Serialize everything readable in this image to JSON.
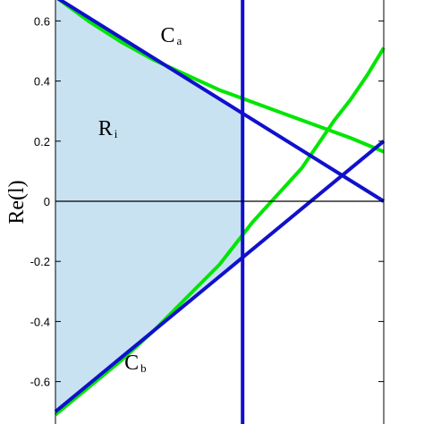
{
  "chart_data": {
    "type": "line",
    "title": "",
    "ylabel": "Re(l)",
    "xlabel": "",
    "ylim": [
      -0.7,
      0.66
    ],
    "xlim": [
      0,
      1
    ],
    "yticks": [
      0.6,
      0.4,
      0.2,
      0,
      -0.2,
      -0.4,
      -0.6
    ],
    "ytick_labels": [
      "0.6",
      "0.4",
      "0.2",
      "0",
      "-0.2",
      "-0.4",
      "-0.6"
    ],
    "grid": false,
    "colors": {
      "green": "#00e600",
      "blue": "#1010cc",
      "region_fill": "#c9e2f2",
      "axis": "#000000"
    },
    "series": [
      {
        "curve": "upper-green",
        "color": "#00e600",
        "x": [
          0.0,
          0.1,
          0.2,
          0.3,
          0.4,
          0.5,
          0.6,
          0.7,
          0.8,
          0.9,
          1.0
        ],
        "y": [
          0.68,
          0.6,
          0.53,
          0.47,
          0.42,
          0.37,
          0.33,
          0.29,
          0.25,
          0.21,
          0.165
        ]
      },
      {
        "curve": "lower-green",
        "color": "#00e600",
        "x": [
          0.0,
          0.1,
          0.2,
          0.3,
          0.4,
          0.5,
          0.6,
          0.7,
          0.75,
          0.8,
          0.85,
          0.9,
          0.95,
          1.0
        ],
        "y": [
          -0.71,
          -0.62,
          -0.53,
          -0.43,
          -0.32,
          -0.21,
          -0.07,
          0.05,
          0.11,
          0.19,
          0.27,
          0.34,
          0.42,
          0.51
        ]
      },
      {
        "curve": "upper-blue-line",
        "color": "#1010cc",
        "x": [
          0.0,
          1.0
        ],
        "y": [
          0.68,
          0.0
        ]
      },
      {
        "curve": "lower-blue-line",
        "color": "#1010cc",
        "x": [
          0.0,
          1.0
        ],
        "y": [
          -0.7,
          0.2
        ]
      },
      {
        "curve": "vertical-blue-line",
        "color": "#1010cc",
        "x": [
          0.57,
          0.57
        ],
        "y": [
          -0.75,
          0.7
        ]
      }
    ],
    "region": {
      "label": "R",
      "subscript": "i",
      "fill": "#c9e2f2",
      "x": [
        0.0,
        0.57,
        0.57,
        0.0
      ],
      "y": [
        0.68,
        0.293,
        -0.187,
        -0.7
      ]
    },
    "annotations": [
      {
        "label": "C",
        "subscript": "a",
        "x": 0.32,
        "y": 0.53
      },
      {
        "label": "R",
        "subscript": "i",
        "x": 0.13,
        "y": 0.22
      },
      {
        "label": "C",
        "subscript": "b",
        "x": 0.21,
        "y": -0.56
      }
    ]
  }
}
